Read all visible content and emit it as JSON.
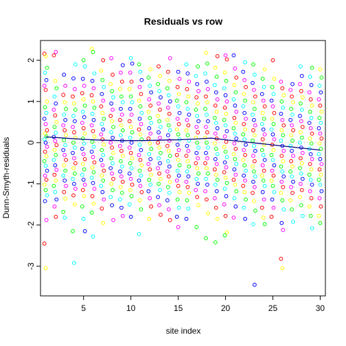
{
  "chart_data": {
    "type": "scatter",
    "title": "Residuals vs row",
    "xlabel": "site index",
    "ylabel": "Dunn-Smyth-residuals",
    "xlim": [
      0.45,
      30.55
    ],
    "ylim": [
      -3.72,
      2.48
    ],
    "x_ticks": [
      5,
      10,
      15,
      20,
      25,
      30
    ],
    "x_tick_labels": [
      "5",
      "10",
      "15",
      "20",
      "25",
      "30"
    ],
    "y_ticks": [
      -3,
      -2,
      -1,
      0,
      1,
      2
    ],
    "y_tick_labels": [
      "-3",
      "-2",
      "-1",
      "0",
      "1",
      "2"
    ],
    "grid": false,
    "legend": "none",
    "reference_line": {
      "y": 0,
      "style": "dotted",
      "color": "#d4a0a0"
    },
    "point_style": "open-circle",
    "point_colors": [
      "#ff0000",
      "#ffff00",
      "#00ff00",
      "#00ffff",
      "#0000ff",
      "#ff00ff"
    ],
    "trend_color": "#000080",
    "trend_line": [
      {
        "x": 1,
        "y": 0.14
      },
      {
        "x": 3,
        "y": 0.11
      },
      {
        "x": 5,
        "y": 0.08
      },
      {
        "x": 7,
        "y": 0.06
      },
      {
        "x": 9,
        "y": 0.05
      },
      {
        "x": 11,
        "y": 0.05
      },
      {
        "x": 13,
        "y": 0.06
      },
      {
        "x": 15,
        "y": 0.07
      },
      {
        "x": 17,
        "y": 0.09
      },
      {
        "x": 18.5,
        "y": 0.11
      },
      {
        "x": 20,
        "y": 0.07
      },
      {
        "x": 22,
        "y": 0.02
      },
      {
        "x": 24,
        "y": -0.03
      },
      {
        "x": 26,
        "y": -0.08
      },
      {
        "x": 28,
        "y": -0.13
      },
      {
        "x": 30,
        "y": -0.18
      }
    ],
    "series": [
      {
        "x": 1,
        "values": [
          2.16,
          2.1,
          1.82,
          1.7,
          1.52,
          1.38,
          1.28,
          1.0,
          0.86,
          0.72,
          0.58,
          0.45,
          0.3,
          0.22,
          0.15,
          0.08,
          0.0,
          -0.1,
          -0.22,
          -0.33,
          -0.45,
          -0.56,
          -0.68,
          -0.8,
          -0.9,
          -1.02,
          -1.15,
          -1.28,
          -1.42,
          -1.88,
          -2.45,
          -3.05
        ]
      },
      {
        "x": 2,
        "values": [
          2.2,
          2.12,
          1.5,
          1.32,
          1.12,
          0.95,
          0.8,
          0.66,
          0.5,
          0.38,
          0.24,
          0.14,
          0.04,
          -0.06,
          -0.18,
          -0.3,
          -0.42,
          -0.55,
          -0.66,
          -0.78,
          -0.92,
          -1.05,
          -1.2,
          -1.38,
          -1.55,
          -1.8
        ]
      },
      {
        "x": 3,
        "values": [
          1.65,
          1.38,
          1.16,
          0.98,
          0.82,
          0.68,
          0.55,
          0.42,
          0.3,
          0.18,
          0.06,
          -0.06,
          -0.18,
          -0.3,
          -0.42,
          -0.55,
          -0.68,
          -0.8,
          -0.92,
          -1.05,
          -1.2,
          -1.36,
          -1.68,
          -1.82
        ]
      },
      {
        "x": 4,
        "values": [
          1.9,
          1.56,
          1.3,
          1.12,
          0.95,
          0.8,
          0.65,
          0.52,
          0.38,
          0.25,
          0.12,
          0.0,
          -0.12,
          -0.25,
          -0.38,
          -0.5,
          -0.62,
          -0.75,
          -0.88,
          -1.0,
          -1.12,
          -1.28,
          -1.5,
          -2.15,
          -2.92
        ]
      },
      {
        "x": 5,
        "values": [
          2.0,
          1.85,
          1.55,
          1.38,
          1.2,
          1.05,
          0.9,
          0.75,
          0.62,
          0.48,
          0.35,
          0.22,
          0.1,
          -0.02,
          -0.15,
          -0.28,
          -0.4,
          -0.52,
          -0.65,
          -0.78,
          -0.9,
          -1.02,
          -1.15,
          -1.3,
          -1.55,
          -1.85,
          -2.15
        ]
      },
      {
        "x": 6,
        "values": [
          2.28,
          2.2,
          1.68,
          1.5,
          1.32,
          1.15,
          1.0,
          0.85,
          0.7,
          0.55,
          0.42,
          0.28,
          0.15,
          0.02,
          -0.1,
          -0.22,
          -0.35,
          -0.48,
          -0.6,
          -0.72,
          -0.85,
          -0.98,
          -1.12,
          -1.3,
          -1.48,
          -1.7,
          -2.28
        ]
      },
      {
        "x": 7,
        "values": [
          2.0,
          1.75,
          1.52,
          1.35,
          1.18,
          1.02,
          0.88,
          0.72,
          0.58,
          0.45,
          0.32,
          0.2,
          0.08,
          -0.05,
          -0.18,
          -0.3,
          -0.42,
          -0.55,
          -0.68,
          -0.8,
          -0.92,
          -1.05,
          -1.2,
          -1.38,
          -1.6,
          -1.95
        ]
      },
      {
        "x": 8,
        "values": [
          2.05,
          1.65,
          1.42,
          1.25,
          1.1,
          0.95,
          0.8,
          0.65,
          0.52,
          0.38,
          0.25,
          0.12,
          0.0,
          -0.12,
          -0.25,
          -0.38,
          -0.5,
          -0.62,
          -0.75,
          -0.88,
          -1.0,
          -1.15,
          -1.32,
          -1.52,
          -1.88
        ]
      },
      {
        "x": 9,
        "values": [
          1.88,
          1.7,
          1.48,
          1.3,
          1.12,
          0.98,
          0.82,
          0.68,
          0.55,
          0.42,
          0.3,
          0.18,
          0.05,
          -0.08,
          -0.2,
          -0.32,
          -0.45,
          -0.58,
          -0.7,
          -0.82,
          -0.95,
          -1.08,
          -1.22,
          -1.38,
          -1.58,
          -1.78
        ]
      },
      {
        "x": 10,
        "values": [
          2.05,
          1.92,
          1.7,
          1.48,
          1.3,
          1.12,
          0.98,
          0.82,
          0.68,
          0.52,
          0.38,
          0.25,
          0.12,
          0.0,
          -0.12,
          -0.25,
          -0.38,
          -0.5,
          -0.62,
          -0.75,
          -0.88,
          -1.02,
          -1.15,
          -1.3,
          -1.5,
          -1.8
        ]
      },
      {
        "x": 11,
        "values": [
          1.9,
          1.72,
          1.52,
          1.35,
          1.18,
          1.02,
          0.88,
          0.72,
          0.58,
          0.45,
          0.32,
          0.2,
          0.08,
          -0.05,
          -0.18,
          -0.3,
          -0.42,
          -0.55,
          -0.68,
          -0.8,
          -0.92,
          -1.05,
          -1.2,
          -1.4,
          -1.62,
          -2.22
        ]
      },
      {
        "x": 12,
        "values": [
          1.78,
          1.58,
          1.38,
          1.22,
          1.05,
          0.9,
          0.75,
          0.6,
          0.48,
          0.35,
          0.22,
          0.1,
          -0.02,
          -0.15,
          -0.28,
          -0.4,
          -0.52,
          -0.65,
          -0.78,
          -0.9,
          -1.02,
          -1.18,
          -1.35,
          -1.55,
          -1.85
        ]
      },
      {
        "x": 13,
        "values": [
          1.85,
          1.62,
          1.42,
          1.25,
          1.1,
          0.95,
          0.8,
          0.65,
          0.52,
          0.38,
          0.25,
          0.12,
          0.0,
          -0.12,
          -0.25,
          -0.38,
          -0.5,
          -0.62,
          -0.75,
          -0.88,
          -1.0,
          -1.15,
          -1.32,
          -1.52,
          -1.75
        ]
      },
      {
        "x": 14,
        "values": [
          2.05,
          1.72,
          1.5,
          1.32,
          1.15,
          1.0,
          0.85,
          0.7,
          0.55,
          0.42,
          0.3,
          0.18,
          0.05,
          -0.08,
          -0.2,
          -0.32,
          -0.45,
          -0.58,
          -0.7,
          -0.82,
          -0.95,
          -1.08,
          -1.22,
          -1.4,
          -1.62,
          -1.88
        ]
      },
      {
        "x": 15,
        "values": [
          1.72,
          1.55,
          1.35,
          1.18,
          1.02,
          0.88,
          0.72,
          0.58,
          0.45,
          0.32,
          0.2,
          0.08,
          -0.05,
          -0.18,
          -0.3,
          -0.42,
          -0.55,
          -0.68,
          -0.8,
          -0.92,
          -1.05,
          -1.2,
          -1.38,
          -1.58,
          -1.8,
          -2.05
        ]
      },
      {
        "x": 16,
        "values": [
          1.9,
          1.68,
          1.48,
          1.3,
          1.12,
          0.98,
          0.82,
          0.68,
          0.55,
          0.42,
          0.3,
          0.18,
          0.05,
          -0.08,
          -0.2,
          -0.32,
          -0.45,
          -0.58,
          -0.7,
          -0.82,
          -0.95,
          -1.08,
          -1.22,
          -1.4,
          -1.6,
          -1.85
        ]
      },
      {
        "x": 17,
        "values": [
          1.85,
          1.62,
          1.42,
          1.25,
          1.1,
          0.95,
          0.8,
          0.65,
          0.52,
          0.38,
          0.25,
          0.12,
          0.0,
          -0.12,
          -0.25,
          -0.38,
          -0.5,
          -0.62,
          -0.75,
          -0.88,
          -1.0,
          -1.15,
          -1.32,
          -1.52,
          -2.05
        ]
      },
      {
        "x": 18,
        "values": [
          2.18,
          1.92,
          1.68,
          1.48,
          1.3,
          1.12,
          0.98,
          0.82,
          0.68,
          0.52,
          0.38,
          0.25,
          0.12,
          0.0,
          -0.12,
          -0.25,
          -0.38,
          -0.5,
          -0.62,
          -0.75,
          -0.88,
          -1.02,
          -1.18,
          -1.38,
          -1.72,
          -2.32
        ]
      },
      {
        "x": 19,
        "values": [
          2.1,
          1.82,
          1.6,
          1.4,
          1.22,
          1.05,
          0.9,
          0.75,
          0.6,
          0.48,
          0.35,
          0.22,
          0.1,
          -0.02,
          -0.15,
          -0.28,
          -0.4,
          -0.52,
          -0.65,
          -0.78,
          -0.9,
          -1.02,
          -1.18,
          -1.35,
          -1.58,
          -1.85,
          -2.42
        ]
      },
      {
        "x": 20,
        "values": [
          2.12,
          2.02,
          1.7,
          1.5,
          1.32,
          1.15,
          1.0,
          0.85,
          0.7,
          0.55,
          0.42,
          0.28,
          0.15,
          0.02,
          -0.1,
          -0.22,
          -0.35,
          -0.48,
          -0.6,
          -0.72,
          -0.85,
          -0.98,
          -1.12,
          -1.3,
          -1.5,
          -1.78,
          -2.18,
          -2.25
        ]
      },
      {
        "x": 21,
        "values": [
          2.12,
          1.8,
          1.58,
          1.4,
          1.22,
          1.05,
          0.9,
          0.75,
          0.6,
          0.48,
          0.35,
          0.22,
          0.1,
          -0.02,
          -0.15,
          -0.28,
          -0.4,
          -0.52,
          -0.65,
          -0.78,
          -0.9,
          -1.02,
          -1.18,
          -1.35,
          -1.55,
          -1.82
        ]
      },
      {
        "x": 22,
        "values": [
          1.95,
          1.72,
          1.52,
          1.35,
          1.18,
          1.02,
          0.88,
          0.72,
          0.58,
          0.45,
          0.32,
          0.2,
          0.08,
          -0.05,
          -0.18,
          -0.3,
          -0.42,
          -0.55,
          -0.68,
          -0.8,
          -0.92,
          -1.05,
          -1.2,
          -1.38,
          -1.58,
          -1.85
        ]
      },
      {
        "x": 23,
        "values": [
          1.9,
          1.65,
          1.45,
          1.28,
          1.12,
          0.98,
          0.82,
          0.68,
          0.55,
          0.42,
          0.3,
          0.18,
          0.05,
          -0.08,
          -0.2,
          -0.32,
          -0.45,
          -0.58,
          -0.7,
          -0.82,
          -0.95,
          -1.08,
          -1.22,
          -1.42,
          -1.65,
          -1.98,
          -3.45
        ]
      },
      {
        "x": 24,
        "values": [
          1.78,
          1.55,
          1.35,
          1.18,
          1.02,
          0.88,
          0.72,
          0.58,
          0.45,
          0.32,
          0.2,
          0.08,
          -0.05,
          -0.18,
          -0.3,
          -0.42,
          -0.55,
          -0.68,
          -0.8,
          -0.92,
          -1.05,
          -1.2,
          -1.38,
          -1.58,
          -1.82,
          -1.98
        ]
      },
      {
        "x": 25,
        "values": [
          2.0,
          1.55,
          1.35,
          1.18,
          1.02,
          0.88,
          0.72,
          0.58,
          0.45,
          0.32,
          0.2,
          0.08,
          -0.05,
          -0.18,
          -0.3,
          -0.42,
          -0.55,
          -0.68,
          -0.8,
          -0.92,
          -1.05,
          -1.2,
          -1.38,
          -1.58,
          -1.8
        ]
      },
      {
        "x": 26,
        "values": [
          1.48,
          1.32,
          1.15,
          1.0,
          0.85,
          0.7,
          0.55,
          0.42,
          0.3,
          0.18,
          0.05,
          -0.08,
          -0.2,
          -0.32,
          -0.45,
          -0.58,
          -0.7,
          -0.82,
          -0.95,
          -1.08,
          -1.22,
          -1.4,
          -1.62,
          -1.95,
          -2.12,
          -2.82,
          -3.05
        ]
      },
      {
        "x": 27,
        "values": [
          1.42,
          1.28,
          1.12,
          0.98,
          0.82,
          0.68,
          0.55,
          0.42,
          0.3,
          0.18,
          0.05,
          -0.08,
          -0.2,
          -0.32,
          -0.45,
          -0.58,
          -0.7,
          -0.82,
          -0.95,
          -1.08,
          -1.22,
          -1.4,
          -1.62,
          -1.92
        ]
      },
      {
        "x": 28,
        "values": [
          1.85,
          1.62,
          1.42,
          1.25,
          1.1,
          0.95,
          0.8,
          0.65,
          0.52,
          0.38,
          0.25,
          0.12,
          0.0,
          -0.12,
          -0.25,
          -0.38,
          -0.5,
          -0.62,
          -0.75,
          -0.88,
          -1.0,
          -1.15,
          -1.32,
          -1.52,
          -1.78
        ]
      },
      {
        "x": 29,
        "values": [
          1.82,
          1.6,
          1.4,
          1.22,
          1.05,
          0.9,
          0.75,
          0.6,
          0.48,
          0.35,
          0.22,
          0.1,
          -0.02,
          -0.15,
          -0.28,
          -0.4,
          -0.52,
          -0.65,
          -0.78,
          -0.9,
          -1.02,
          -1.18,
          -1.35,
          -1.55,
          -1.78,
          -2.08
        ]
      },
      {
        "x": 30,
        "values": [
          1.78,
          1.58,
          1.38,
          1.22,
          1.05,
          0.9,
          0.75,
          0.6,
          0.48,
          0.35,
          0.22,
          0.1,
          -0.02,
          -0.15,
          -0.28,
          -0.4,
          -0.52,
          -0.65,
          -0.78,
          -0.9,
          -1.02,
          -1.18,
          -1.35,
          -1.55,
          -1.78,
          -1.95
        ]
      }
    ]
  }
}
